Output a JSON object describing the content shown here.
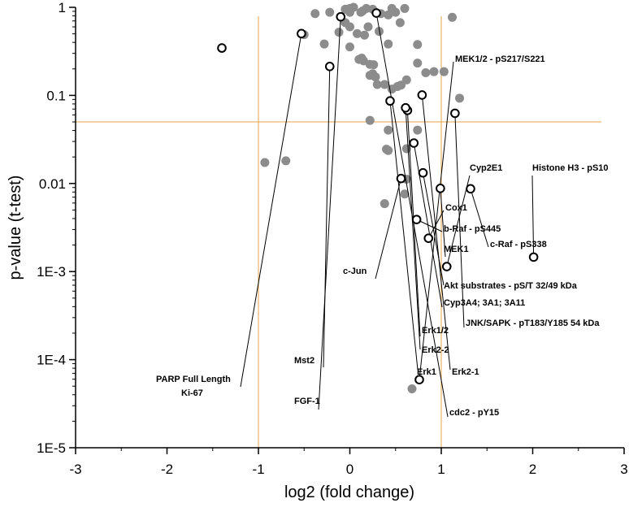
{
  "chart_data": {
    "type": "scatter",
    "title": "",
    "xlabel": "log2 (fold change)",
    "ylabel": "p-value (t-test)",
    "xlim": [
      -3,
      3
    ],
    "ylim_log10": [
      -5,
      0
    ],
    "x_ticks": [
      -3,
      -2,
      -1,
      0,
      1,
      2,
      3
    ],
    "x_tick_labels": [
      "-3",
      "-2",
      "-1",
      "0",
      "1",
      "2",
      "3"
    ],
    "y_ticks": [
      1e-05,
      0.0001,
      0.001,
      0.01,
      0.1,
      1
    ],
    "y_tick_labels": [
      "1E-5",
      "1E-4",
      "1E-3",
      "0.01",
      "0.1",
      "1"
    ],
    "thresholds": {
      "x": [
        -1,
        1
      ],
      "y": 0.05
    },
    "colors": {
      "threshold_line": "#e6a54a",
      "gray_point": "#8c8c8c",
      "highlight_point": "#000000"
    },
    "gray_points": [
      {
        "x": 0.68,
        "y": 4.66e-05
      },
      {
        "x": 0.38,
        "y": 0.0059
      },
      {
        "x": 0.6,
        "y": 0.0076
      },
      {
        "x": 0.62,
        "y": 0.0112
      },
      {
        "x": -0.93,
        "y": 0.0173
      },
      {
        "x": -0.7,
        "y": 0.0181
      },
      {
        "x": 0.42,
        "y": 0.0237
      },
      {
        "x": 0.4,
        "y": 0.0245
      },
      {
        "x": 0.62,
        "y": 0.0248
      },
      {
        "x": 0.42,
        "y": 0.0404
      },
      {
        "x": 0.74,
        "y": 0.0404
      },
      {
        "x": 0.22,
        "y": 0.052
      },
      {
        "x": 1.2,
        "y": 0.093
      },
      {
        "x": 0.46,
        "y": 0.118
      },
      {
        "x": 0.52,
        "y": 0.126
      },
      {
        "x": 0.56,
        "y": 0.131
      },
      {
        "x": 0.3,
        "y": 0.133
      },
      {
        "x": 0.38,
        "y": 0.133
      },
      {
        "x": 0.62,
        "y": 0.15
      },
      {
        "x": 0.28,
        "y": 0.162
      },
      {
        "x": 0.22,
        "y": 0.169
      },
      {
        "x": 0.25,
        "y": 0.176
      },
      {
        "x": 0.83,
        "y": 0.181
      },
      {
        "x": 0.92,
        "y": 0.186
      },
      {
        "x": 1.03,
        "y": 0.186
      },
      {
        "x": 0.74,
        "y": 0.233
      },
      {
        "x": 0.26,
        "y": 0.223
      },
      {
        "x": 0.22,
        "y": 0.225
      },
      {
        "x": 0.15,
        "y": 0.247
      },
      {
        "x": 0.13,
        "y": 0.265
      },
      {
        "x": 0.1,
        "y": 0.256
      },
      {
        "x": -0.28,
        "y": 0.383
      },
      {
        "x": 0.0,
        "y": 0.355
      },
      {
        "x": 0.74,
        "y": 0.378
      },
      {
        "x": 0.42,
        "y": 0.383
      },
      {
        "x": -0.5,
        "y": 0.49
      },
      {
        "x": -0.12,
        "y": 0.522
      },
      {
        "x": 0.16,
        "y": 0.483
      },
      {
        "x": 0.08,
        "y": 0.503
      },
      {
        "x": 0.32,
        "y": 0.533
      },
      {
        "x": 0.2,
        "y": 0.6
      },
      {
        "x": 0.0,
        "y": 0.6
      },
      {
        "x": -0.05,
        "y": 0.67
      },
      {
        "x": 0.55,
        "y": 0.67
      },
      {
        "x": -0.38,
        "y": 0.849
      },
      {
        "x": -0.22,
        "y": 0.878
      },
      {
        "x": 0.0,
        "y": 0.878
      },
      {
        "x": 0.12,
        "y": 0.878
      },
      {
        "x": 0.34,
        "y": 0.849
      },
      {
        "x": 0.42,
        "y": 0.82
      },
      {
        "x": 0.5,
        "y": 0.878
      },
      {
        "x": 0.14,
        "y": 0.908
      },
      {
        "x": 0.0,
        "y": 0.97
      },
      {
        "x": 0.18,
        "y": 0.97
      },
      {
        "x": 0.46,
        "y": 0.97
      },
      {
        "x": 0.04,
        "y": 1.0
      },
      {
        "x": 1.12,
        "y": 0.77
      },
      {
        "x": 0.6,
        "y": 0.97
      },
      {
        "x": 0.25,
        "y": 0.95
      },
      {
        "x": -0.05,
        "y": 0.95
      }
    ],
    "highlighted_points": [
      {
        "label": "MEK1/2 - pS217/S221",
        "x": 0.76,
        "y": 5.93e-05
      },
      {
        "label": "Cyp2E1",
        "x": 1.06,
        "y": 0.00114
      },
      {
        "label": "Histone H3 - pS10",
        "x": 2.01,
        "y": 0.00146
      },
      {
        "label": "Cox1",
        "x": 0.86,
        "y": 0.00239
      },
      {
        "label": "b-Raf - pS445",
        "x": 0.73,
        "y": 0.0039
      },
      {
        "label": "c-Raf - pS338",
        "x": 1.32,
        "y": 0.00871
      },
      {
        "label": "MEK1",
        "x": 0.99,
        "y": 0.0088
      },
      {
        "label": "c-Jun",
        "x": 0.56,
        "y": 0.0114
      },
      {
        "label": "Akt substrates - pS/T 32/49 kDa",
        "x": 0.8,
        "y": 0.0132
      },
      {
        "label": "Cyp3A4; 3A1; 3A11",
        "x": 0.7,
        "y": 0.0288
      },
      {
        "label": "JNK/SAPK - pT183/Y185 54 kDa",
        "x": 1.15,
        "y": 0.0627
      },
      {
        "label": "Erk1/2",
        "x": 0.63,
        "y": 0.0676
      },
      {
        "label": "Erk2-2",
        "x": 0.61,
        "y": 0.0723
      },
      {
        "label": "Erk1",
        "x": 0.44,
        "y": 0.0865
      },
      {
        "label": "Erk2-1",
        "x": 0.79,
        "y": 0.101
      },
      {
        "label": "Mst2",
        "x": -0.22,
        "y": 0.213
      },
      {
        "label": "Ki-67",
        "x": -1.4,
        "y": 0.345
      },
      {
        "label": "PARP Full Length",
        "x": -0.53,
        "y": 0.503
      },
      {
        "label": "FGF-1",
        "x": -0.1,
        "y": 0.781
      },
      {
        "label": "cdc2 - pY15",
        "x": 0.29,
        "y": 0.861
      }
    ]
  }
}
